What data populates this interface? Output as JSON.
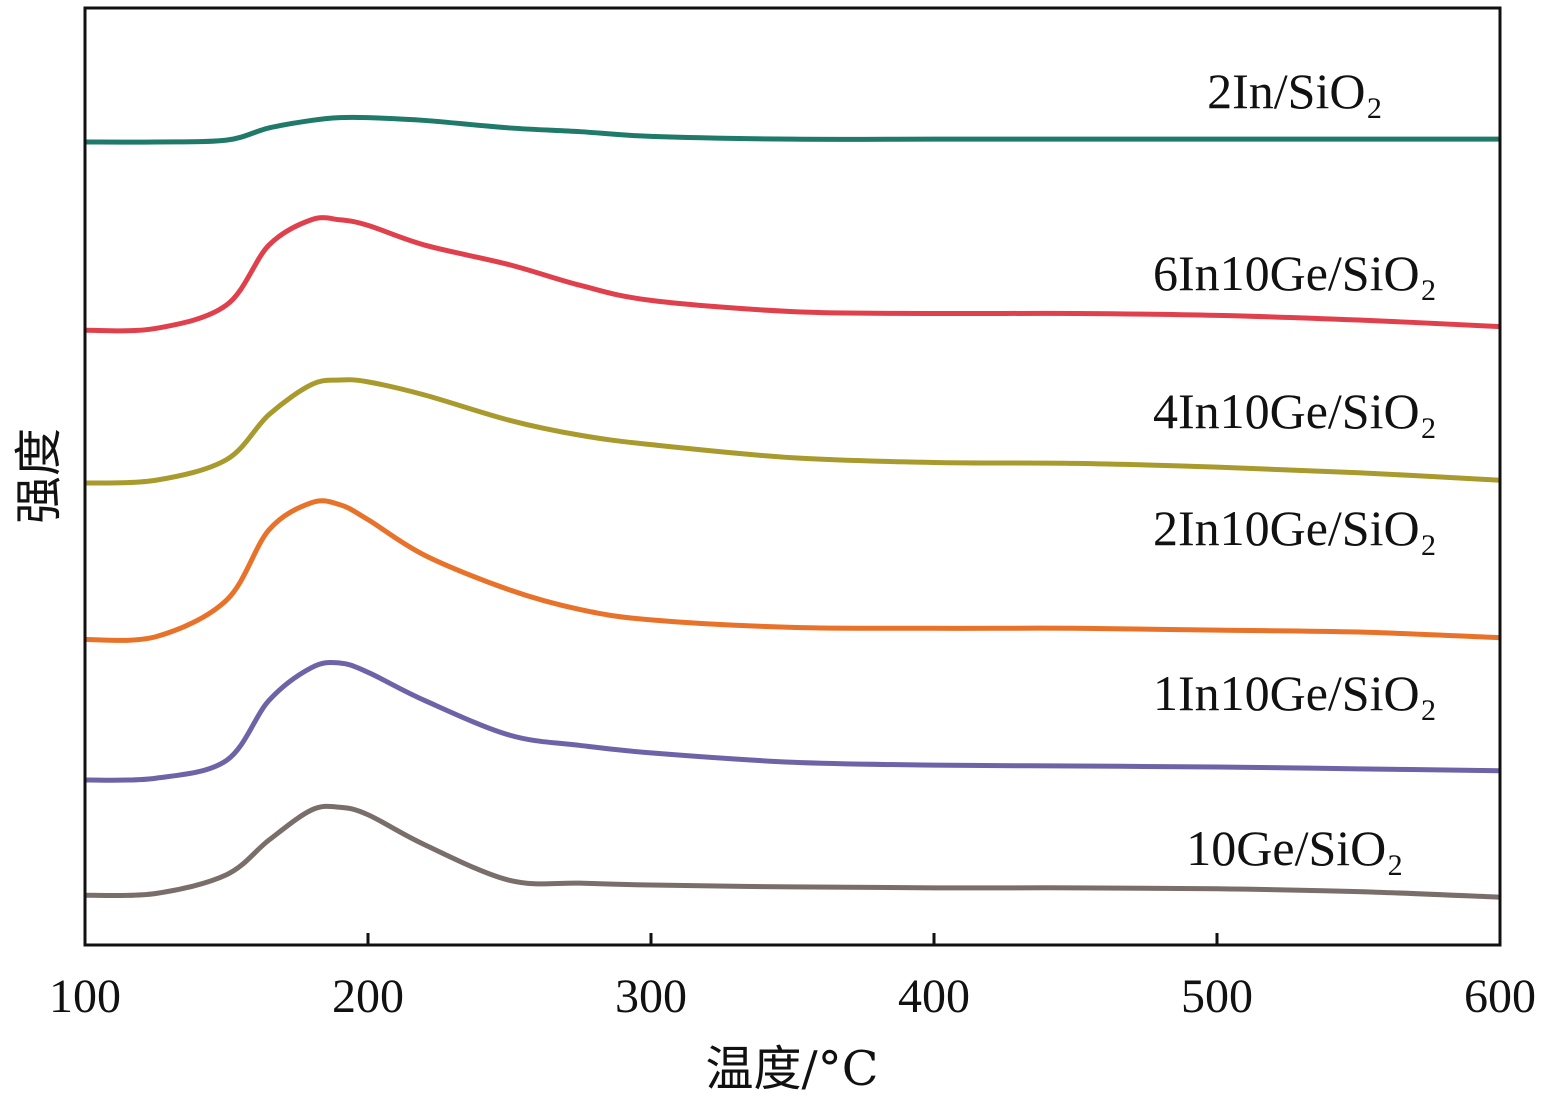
{
  "chart_data": {
    "type": "line",
    "title": "",
    "xlabel": "温度/°C",
    "ylabel": "强度",
    "xlim": [
      100,
      600
    ],
    "ylim": [
      0,
      100
    ],
    "xticks": [
      100,
      200,
      300,
      400,
      500,
      600
    ],
    "xtick_labels": [
      "100",
      "200",
      "300",
      "400",
      "500",
      "600"
    ],
    "grid": false,
    "legend": "inline labels at right of each curve",
    "x": [
      100,
      125,
      150,
      165,
      180,
      190,
      200,
      220,
      250,
      275,
      300,
      350,
      400,
      450,
      500,
      550,
      600
    ],
    "series": [
      {
        "name": "2In/SiO₂",
        "color": "#1f7a6a",
        "values": [
          85.7,
          85.7,
          85.9,
          87.2,
          88.0,
          88.3,
          88.3,
          88.0,
          87.2,
          86.8,
          86.3,
          86.0,
          86.0,
          86.0,
          86.0,
          86.0,
          86.0
        ]
      },
      {
        "name": "6In10Ge/SiO₂",
        "color": "#e0404c",
        "values": [
          65.6,
          65.8,
          68.3,
          74.7,
          77.4,
          77.4,
          76.8,
          74.7,
          72.6,
          70.4,
          68.8,
          67.6,
          67.4,
          67.4,
          67.2,
          66.7,
          66.0
        ]
      },
      {
        "name": "4In10Ge/SiO₂",
        "color": "#a99a2e",
        "values": [
          49.3,
          49.6,
          51.8,
          56.6,
          59.8,
          60.3,
          60.1,
          58.7,
          56.0,
          54.4,
          53.4,
          52.0,
          51.5,
          51.4,
          51.0,
          50.4,
          49.6
        ]
      },
      {
        "name": "2In10Ge/SiO₂",
        "color": "#e8722a",
        "values": [
          32.6,
          32.9,
          36.8,
          44.3,
          47.2,
          47.0,
          45.4,
          41.6,
          37.9,
          35.8,
          34.7,
          33.9,
          33.8,
          33.8,
          33.6,
          33.4,
          32.8
        ]
      },
      {
        "name": "1In10Ge/SiO₂",
        "color": "#6f63a8",
        "values": [
          17.6,
          17.8,
          19.7,
          26.1,
          29.6,
          30.1,
          29.1,
          26.1,
          22.4,
          21.3,
          20.5,
          19.5,
          19.2,
          19.1,
          19.0,
          18.8,
          18.6
        ]
      },
      {
        "name": "10Ge/SiO₂",
        "color": "#7a6e6a",
        "values": [
          5.3,
          5.5,
          7.5,
          11.2,
          14.4,
          14.7,
          13.9,
          10.7,
          6.9,
          6.6,
          6.4,
          6.2,
          6.1,
          6.1,
          6.0,
          5.7,
          5.1
        ]
      }
    ]
  }
}
